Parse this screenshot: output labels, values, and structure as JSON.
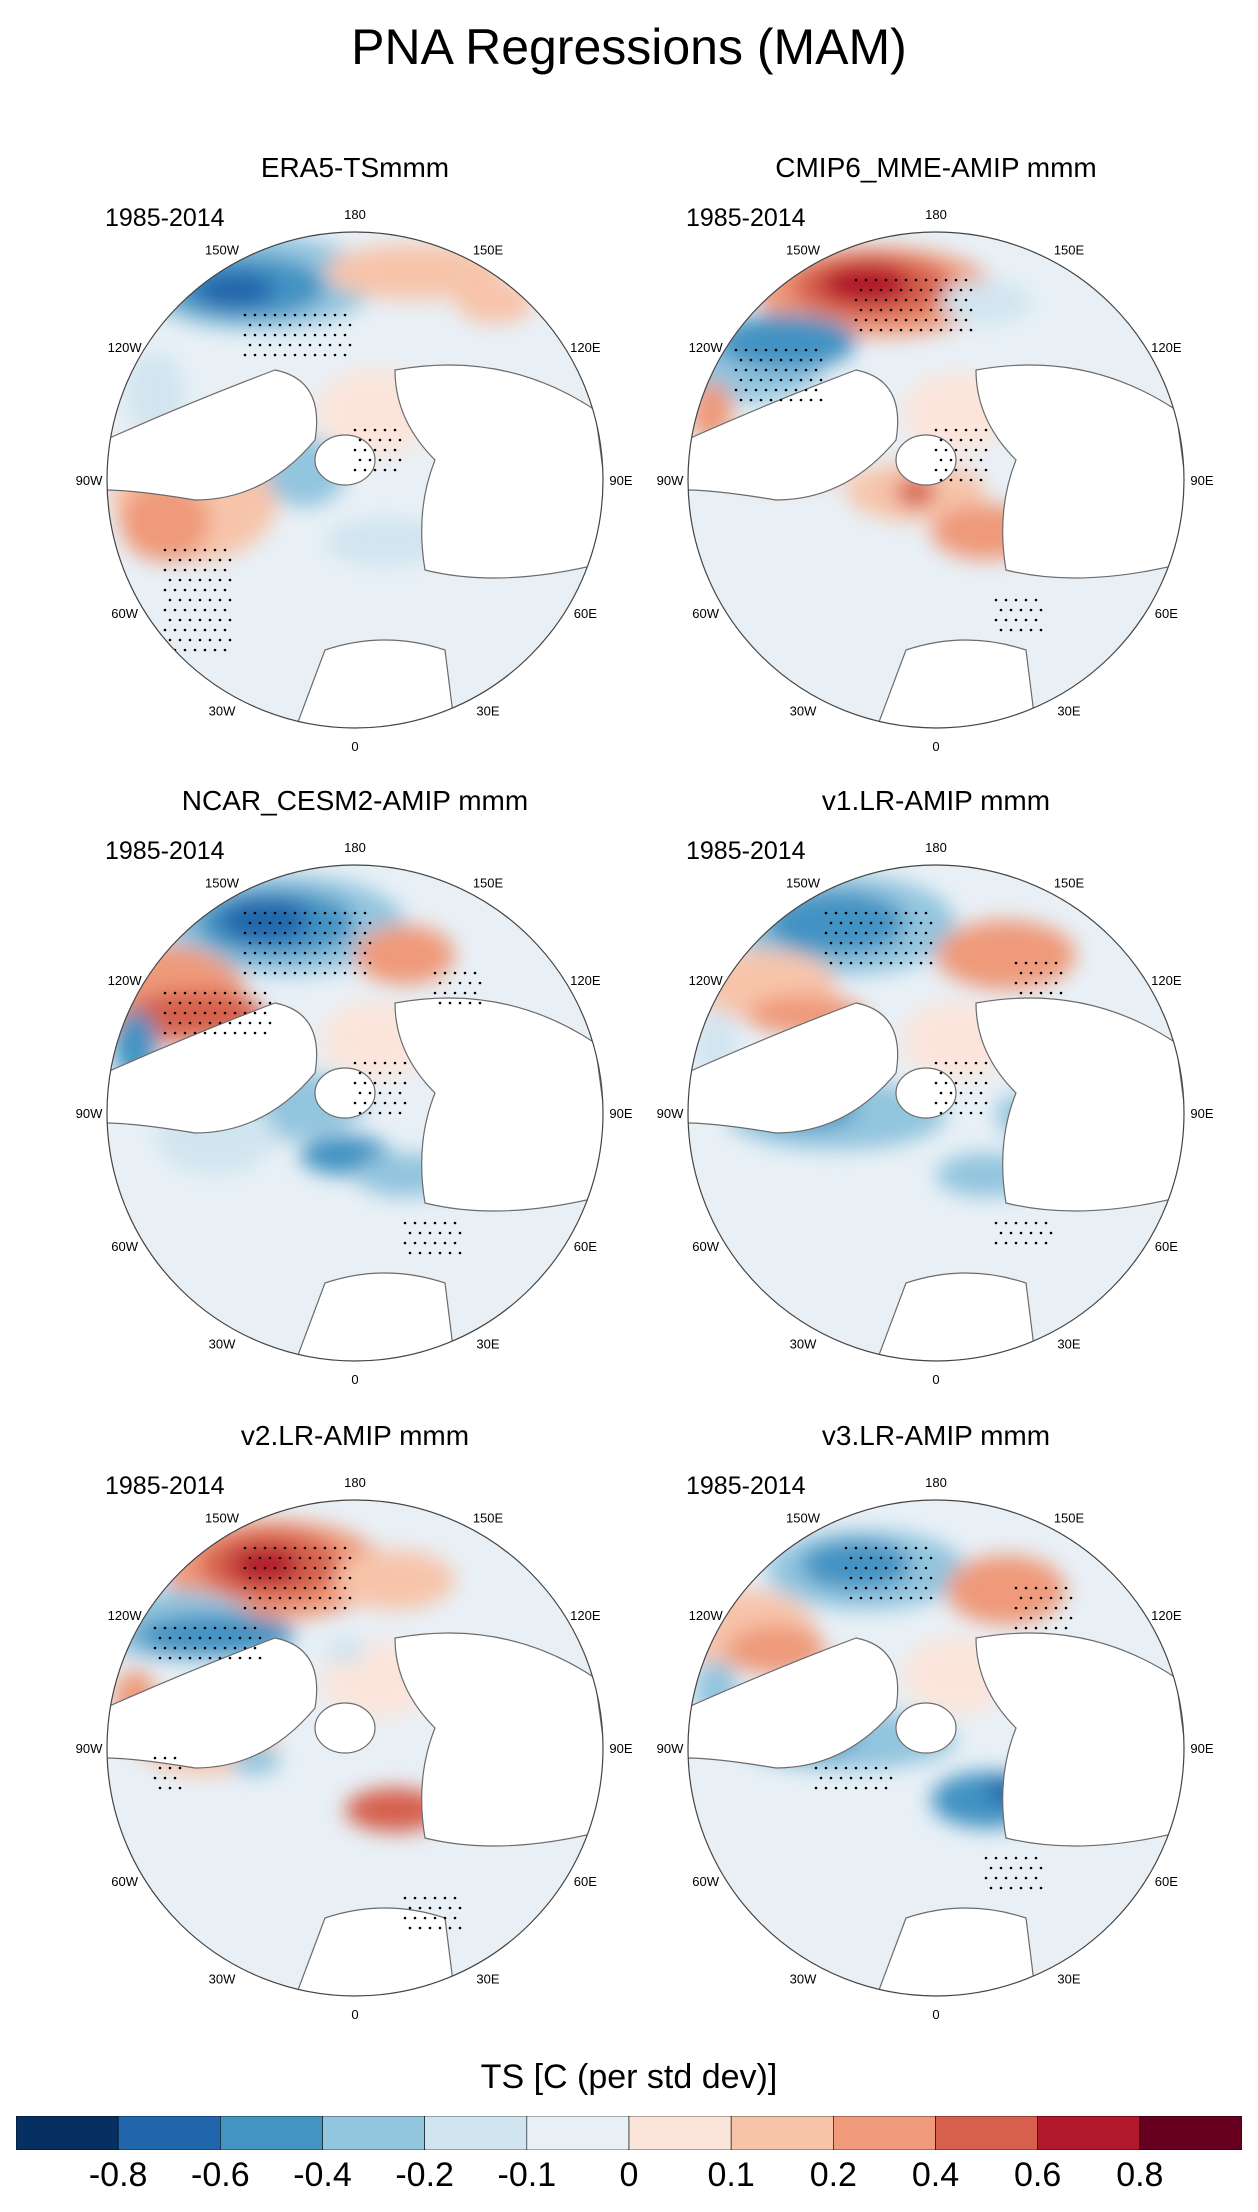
{
  "title": "PNA Regressions (MAM)",
  "panels": [
    {
      "title": "ERA5-TSmmm",
      "years": "1985-2014",
      "pattern": "era5"
    },
    {
      "title": "CMIP6_MME-AMIP  mmm",
      "years": "1985-2014",
      "pattern": "cmip6"
    },
    {
      "title": "NCAR_CESM2-AMIP  mmm",
      "years": "1985-2014",
      "pattern": "cesm2"
    },
    {
      "title": "v1.LR-AMIP  mmm",
      "years": "1985-2014",
      "pattern": "v1"
    },
    {
      "title": "v2.LR-AMIP  mmm",
      "years": "1985-2014",
      "pattern": "v2"
    },
    {
      "title": "v3.LR-AMIP  mmm",
      "years": "1985-2014",
      "pattern": "v3"
    }
  ],
  "longitude_labels": [
    "180",
    "150E",
    "120E",
    "90E",
    "60E",
    "30E",
    "0",
    "30W",
    "60W",
    "90W",
    "120W",
    "150W"
  ],
  "colorbar": {
    "title": "TS [C (per std dev)]",
    "colors": [
      "#053061",
      "#2166ac",
      "#4393c3",
      "#92c5de",
      "#d1e5f0",
      "#e8f0f6",
      "#fbe5db",
      "#f7c4aa",
      "#ef9a7a",
      "#d6604d",
      "#b2182b",
      "#67001f"
    ],
    "labels": [
      "-0.8",
      "-0.6",
      "-0.4",
      "-0.2",
      "-0.1",
      "0",
      "0.1",
      "0.2",
      "0.4",
      "0.6",
      "0.8"
    ]
  }
}
